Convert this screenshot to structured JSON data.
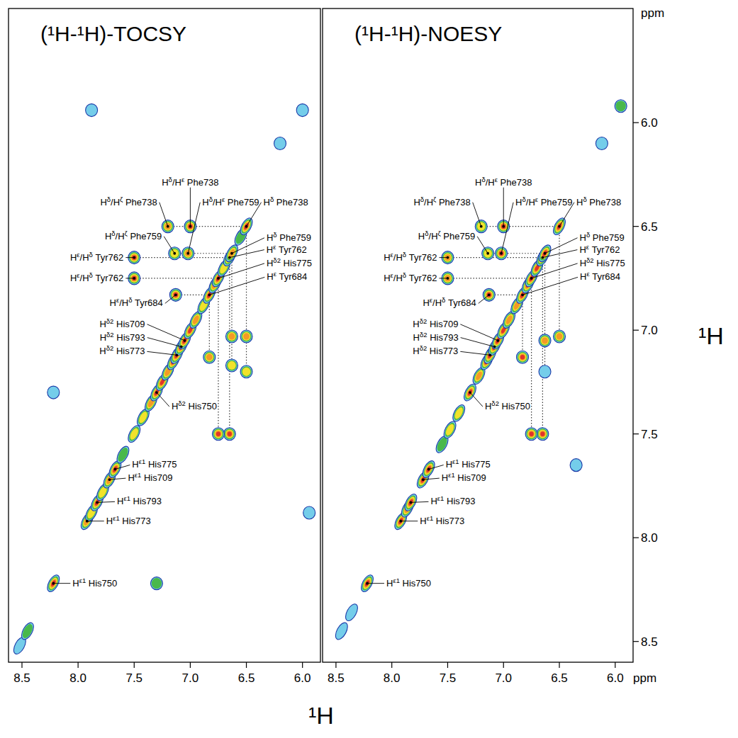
{
  "chart_data": [
    {
      "type": "contour",
      "title": "(¹H-¹H)-TOCSY",
      "xlabel": "¹H",
      "tick_labels": "x",
      "xlim": [
        8.62,
        5.84
      ],
      "ylim": [
        5.45,
        8.6
      ],
      "xticks": [
        8.5,
        {
          "value": 8.0,
          "label": "8.0"
        },
        7.5,
        {
          "value": 7.0,
          "label": "7.0"
        },
        6.5,
        {
          "value": 6.0,
          "label": "6.0"
        }
      ],
      "peaks": [
        {
          "x": 7.2,
          "y": 6.5,
          "level": 4
        },
        {
          "x": 7.0,
          "y": 6.5,
          "level": 5
        },
        {
          "x": 7.14,
          "y": 6.63,
          "level": 3
        },
        {
          "x": 7.02,
          "y": 6.63,
          "level": 4
        },
        {
          "x": 7.5,
          "y": 6.65,
          "level": 5
        },
        {
          "x": 7.5,
          "y": 6.75,
          "level": 5
        },
        {
          "x": 7.13,
          "y": 6.83,
          "level": 5
        },
        {
          "x": 6.5,
          "y": 7.03,
          "level": 4
        },
        {
          "x": 6.5,
          "y": 7.2,
          "level": 3
        },
        {
          "x": 6.63,
          "y": 7.03,
          "level": 4
        },
        {
          "x": 6.63,
          "y": 7.17,
          "level": 3
        },
        {
          "x": 6.65,
          "y": 7.5,
          "level": 5
        },
        {
          "x": 6.75,
          "y": 7.5,
          "level": 5
        },
        {
          "x": 6.83,
          "y": 7.13,
          "level": 4
        },
        {
          "x": 7.3,
          "y": 8.22,
          "level": 2
        },
        {
          "x": 8.22,
          "y": 7.3,
          "level": 1
        },
        {
          "x": 7.88,
          "y": 5.94,
          "level": 1
        },
        {
          "x": 6.0,
          "y": 5.94,
          "level": 1
        },
        {
          "x": 6.2,
          "y": 6.1,
          "level": 1
        },
        {
          "x": 5.94,
          "y": 7.88,
          "level": 1
        },
        {
          "x": 8.52,
          "y": 8.52,
          "level": 1
        },
        {
          "x": 8.45,
          "y": 8.45,
          "level": 2
        },
        {
          "x": 8.22,
          "y": 8.22,
          "level": 6
        },
        {
          "x": 7.92,
          "y": 7.92,
          "level": 4
        },
        {
          "x": 7.88,
          "y": 7.88,
          "level": 3
        },
        {
          "x": 7.83,
          "y": 7.83,
          "level": 5
        },
        {
          "x": 7.78,
          "y": 7.78,
          "level": 3
        },
        {
          "x": 7.72,
          "y": 7.72,
          "level": 4
        },
        {
          "x": 7.67,
          "y": 7.67,
          "level": 5
        },
        {
          "x": 7.6,
          "y": 7.6,
          "level": 2
        },
        {
          "x": 7.5,
          "y": 7.5,
          "level": 3
        },
        {
          "x": 7.42,
          "y": 7.42,
          "level": 3
        },
        {
          "x": 7.35,
          "y": 7.35,
          "level": 4
        },
        {
          "x": 7.3,
          "y": 7.3,
          "level": 5
        },
        {
          "x": 7.25,
          "y": 7.25,
          "level": 5
        },
        {
          "x": 7.2,
          "y": 7.2,
          "level": 4
        },
        {
          "x": 7.15,
          "y": 7.15,
          "level": 5
        },
        {
          "x": 7.12,
          "y": 7.12,
          "level": 6
        },
        {
          "x": 7.08,
          "y": 7.08,
          "level": 6
        },
        {
          "x": 7.05,
          "y": 7.05,
          "level": 6
        },
        {
          "x": 7.0,
          "y": 7.0,
          "level": 5
        },
        {
          "x": 6.95,
          "y": 6.95,
          "level": 4
        },
        {
          "x": 6.88,
          "y": 6.88,
          "level": 3
        },
        {
          "x": 6.83,
          "y": 6.83,
          "level": 6
        },
        {
          "x": 6.78,
          "y": 6.78,
          "level": 4
        },
        {
          "x": 6.75,
          "y": 6.75,
          "level": 6
        },
        {
          "x": 6.7,
          "y": 6.7,
          "level": 3
        },
        {
          "x": 6.65,
          "y": 6.65,
          "level": 5
        },
        {
          "x": 6.63,
          "y": 6.63,
          "level": 4
        },
        {
          "x": 6.55,
          "y": 6.55,
          "level": 2
        },
        {
          "x": 6.5,
          "y": 6.5,
          "level": 6
        }
      ],
      "lines": [
        {
          "x": [
            7.2,
            6.5
          ],
          "y": [
            6.5,
            6.5
          ]
        },
        {
          "x": [
            7.14,
            6.63
          ],
          "y": [
            6.63,
            6.63
          ]
        },
        {
          "x": [
            7.5,
            6.65
          ],
          "y": [
            6.65,
            6.65
          ]
        },
        {
          "x": [
            7.5,
            6.75
          ],
          "y": [
            6.75,
            6.75
          ]
        },
        {
          "x": [
            7.13,
            6.83
          ],
          "y": [
            6.83,
            6.83
          ]
        },
        {
          "x": [
            6.5,
            6.5
          ],
          "y": [
            6.5,
            7.2
          ]
        },
        {
          "x": [
            6.63,
            6.63
          ],
          "y": [
            6.63,
            7.17
          ]
        },
        {
          "x": [
            6.65,
            6.65
          ],
          "y": [
            6.65,
            7.5
          ]
        },
        {
          "x": [
            6.75,
            6.75
          ],
          "y": [
            6.75,
            7.5
          ]
        },
        {
          "x": [
            6.83,
            6.83
          ],
          "y": [
            6.83,
            7.13
          ]
        }
      ],
      "annotations": [
        {
          "text": "Hδ/Hζ Phe738",
          "x": 7.2,
          "y": 6.5
        },
        {
          "text": "Hδ/Hε Phe738",
          "x": 7.0,
          "y": 6.5
        },
        {
          "text": "Hδ/Hε Phe759",
          "x": 7.02,
          "y": 6.63
        },
        {
          "text": "Hδ Phe738",
          "x": 6.5,
          "y": 6.5
        },
        {
          "text": "Hδ/Hζ Phe759",
          "x": 7.14,
          "y": 6.63
        },
        {
          "text": "Hδ Phe759",
          "x": 6.63,
          "y": 6.63
        },
        {
          "text": "Hε Tyr762",
          "x": 6.65,
          "y": 6.65
        },
        {
          "text": "Hε/Hδ Tyr762",
          "x": 7.5,
          "y": 6.65
        },
        {
          "text": "Hε/Hδ Tyr762",
          "x": 7.5,
          "y": 6.75
        },
        {
          "text": "Hδ2 His775",
          "x": 6.75,
          "y": 6.75
        },
        {
          "text": "Hε Tyr684",
          "x": 6.83,
          "y": 6.83
        },
        {
          "text": "Hε/Hδ Tyr684",
          "x": 7.13,
          "y": 6.83
        },
        {
          "text": "Hδ2 His709",
          "x": 7.05,
          "y": 7.05
        },
        {
          "text": "Hδ2 His793",
          "x": 7.08,
          "y": 7.08
        },
        {
          "text": "Hδ2 His773",
          "x": 7.12,
          "y": 7.12
        },
        {
          "text": "Hδ2 His750",
          "x": 7.3,
          "y": 7.3
        },
        {
          "text": "Hε1 His775",
          "x": 7.67,
          "y": 7.67
        },
        {
          "text": "Hε1 His709",
          "x": 7.72,
          "y": 7.72
        },
        {
          "text": "Hε1 His793",
          "x": 7.83,
          "y": 7.83
        },
        {
          "text": "Hε1 His773",
          "x": 7.92,
          "y": 7.92
        },
        {
          "text": "Hε1 His750",
          "x": 8.22,
          "y": 8.22
        }
      ]
    },
    {
      "type": "contour",
      "title": "(¹H-¹H)-NOESY",
      "x_unit": "ppm",
      "ylabel": "¹H",
      "y_unit": "ppm",
      "xlim": [
        8.62,
        5.84
      ],
      "ylim": [
        5.45,
        8.6
      ],
      "xticks": [
        8.5,
        {
          "value": 8.0,
          "label": "8.0"
        },
        7.5,
        {
          "value": 7.0,
          "label": "7.0"
        },
        6.5,
        {
          "value": 6.0,
          "label": "6.0"
        }
      ],
      "yticks": [
        {
          "value": 6.0,
          "label": "6.0"
        },
        6.5,
        {
          "value": 7.0,
          "label": "7.0"
        },
        7.5,
        {
          "value": 8.0,
          "label": "8.0"
        },
        8.5
      ],
      "peaks": [
        {
          "x": 7.2,
          "y": 6.5,
          "level": 3
        },
        {
          "x": 7.0,
          "y": 6.5,
          "level": 5
        },
        {
          "x": 7.14,
          "y": 6.63,
          "level": 3
        },
        {
          "x": 7.02,
          "y": 6.63,
          "level": 5
        },
        {
          "x": 7.5,
          "y": 6.65,
          "level": 4
        },
        {
          "x": 7.5,
          "y": 6.75,
          "level": 4
        },
        {
          "x": 7.13,
          "y": 6.83,
          "level": 5
        },
        {
          "x": 6.5,
          "y": 7.03,
          "level": 4
        },
        {
          "x": 6.63,
          "y": 7.05,
          "level": 4
        },
        {
          "x": 6.63,
          "y": 7.2,
          "level": 1
        },
        {
          "x": 6.65,
          "y": 7.5,
          "level": 5
        },
        {
          "x": 6.75,
          "y": 7.5,
          "level": 5
        },
        {
          "x": 6.83,
          "y": 7.13,
          "level": 5
        },
        {
          "x": 5.95,
          "y": 5.92,
          "level": 2
        },
        {
          "x": 6.12,
          "y": 6.1,
          "level": 1
        },
        {
          "x": 6.35,
          "y": 7.65,
          "level": 1
        },
        {
          "x": 8.45,
          "y": 8.45,
          "level": 1
        },
        {
          "x": 8.36,
          "y": 8.36,
          "level": 1
        },
        {
          "x": 8.22,
          "y": 8.22,
          "level": 6
        },
        {
          "x": 7.92,
          "y": 7.92,
          "level": 5
        },
        {
          "x": 7.86,
          "y": 7.86,
          "level": 4
        },
        {
          "x": 7.83,
          "y": 7.83,
          "level": 5
        },
        {
          "x": 7.72,
          "y": 7.72,
          "level": 5
        },
        {
          "x": 7.67,
          "y": 7.67,
          "level": 5
        },
        {
          "x": 7.55,
          "y": 7.55,
          "level": 2
        },
        {
          "x": 7.48,
          "y": 7.48,
          "level": 3
        },
        {
          "x": 7.4,
          "y": 7.4,
          "level": 3
        },
        {
          "x": 7.3,
          "y": 7.3,
          "level": 5
        },
        {
          "x": 7.22,
          "y": 7.22,
          "level": 4
        },
        {
          "x": 7.15,
          "y": 7.15,
          "level": 5
        },
        {
          "x": 7.12,
          "y": 7.12,
          "level": 5
        },
        {
          "x": 7.08,
          "y": 7.08,
          "level": 6
        },
        {
          "x": 7.05,
          "y": 7.05,
          "level": 6
        },
        {
          "x": 7.0,
          "y": 7.0,
          "level": 5
        },
        {
          "x": 6.95,
          "y": 6.95,
          "level": 4
        },
        {
          "x": 6.88,
          "y": 6.88,
          "level": 4
        },
        {
          "x": 6.83,
          "y": 6.83,
          "level": 5
        },
        {
          "x": 6.78,
          "y": 6.78,
          "level": 5
        },
        {
          "x": 6.75,
          "y": 6.75,
          "level": 6
        },
        {
          "x": 6.7,
          "y": 6.7,
          "level": 5
        },
        {
          "x": 6.65,
          "y": 6.65,
          "level": 6
        },
        {
          "x": 6.63,
          "y": 6.63,
          "level": 5
        },
        {
          "x": 6.5,
          "y": 6.5,
          "level": 5
        }
      ],
      "lines": [
        {
          "x": [
            7.2,
            6.5
          ],
          "y": [
            6.5,
            6.5
          ]
        },
        {
          "x": [
            7.14,
            6.63
          ],
          "y": [
            6.63,
            6.63
          ]
        },
        {
          "x": [
            7.5,
            6.65
          ],
          "y": [
            6.65,
            6.65
          ]
        },
        {
          "x": [
            7.5,
            6.75
          ],
          "y": [
            6.75,
            6.75
          ]
        },
        {
          "x": [
            7.13,
            6.83
          ],
          "y": [
            6.83,
            6.83
          ]
        },
        {
          "x": [
            6.5,
            6.5
          ],
          "y": [
            6.5,
            7.03
          ]
        },
        {
          "x": [
            6.63,
            6.63
          ],
          "y": [
            6.63,
            7.2
          ]
        },
        {
          "x": [
            6.65,
            6.65
          ],
          "y": [
            6.65,
            7.5
          ]
        },
        {
          "x": [
            6.75,
            6.75
          ],
          "y": [
            6.75,
            7.5
          ]
        },
        {
          "x": [
            6.83,
            6.83
          ],
          "y": [
            6.83,
            7.13
          ]
        }
      ],
      "annotations": [
        {
          "text": "Hδ/Hζ Phe738",
          "x": 7.2,
          "y": 6.5
        },
        {
          "text": "Hδ/Hε Phe738",
          "x": 7.0,
          "y": 6.5
        },
        {
          "text": "Hδ/Hε Phe759",
          "x": 7.02,
          "y": 6.63
        },
        {
          "text": "Hδ Phe738",
          "x": 6.5,
          "y": 6.5
        },
        {
          "text": "Hδ/Hζ Phe759",
          "x": 7.14,
          "y": 6.63
        },
        {
          "text": "Hδ Phe759",
          "x": 6.63,
          "y": 6.63
        },
        {
          "text": "Hε Tyr762",
          "x": 6.65,
          "y": 6.65
        },
        {
          "text": "Hε/Hδ Tyr762",
          "x": 7.5,
          "y": 6.65
        },
        {
          "text": "Hε/Hδ Tyr762",
          "x": 7.5,
          "y": 6.75
        },
        {
          "text": "Hδ2 His775",
          "x": 6.75,
          "y": 6.75
        },
        {
          "text": "Hε Tyr684",
          "x": 6.83,
          "y": 6.83
        },
        {
          "text": "Hε/Hδ Tyr684",
          "x": 7.13,
          "y": 6.83
        },
        {
          "text": "Hδ2 His709",
          "x": 7.05,
          "y": 7.05
        },
        {
          "text": "Hδ2 His793",
          "x": 7.08,
          "y": 7.08
        },
        {
          "text": "Hδ2 His773",
          "x": 7.12,
          "y": 7.12
        },
        {
          "text": "Hδ2 His750",
          "x": 7.3,
          "y": 7.3
        },
        {
          "text": "Hε1 His775",
          "x": 7.67,
          "y": 7.67
        },
        {
          "text": "Hε1 His709",
          "x": 7.72,
          "y": 7.72
        },
        {
          "text": "Hε1 His793",
          "x": 7.83,
          "y": 7.83
        },
        {
          "text": "Hε1 His773",
          "x": 7.92,
          "y": 7.92
        },
        {
          "text": "Hε1 His750",
          "x": 8.22,
          "y": 8.22
        }
      ]
    }
  ]
}
